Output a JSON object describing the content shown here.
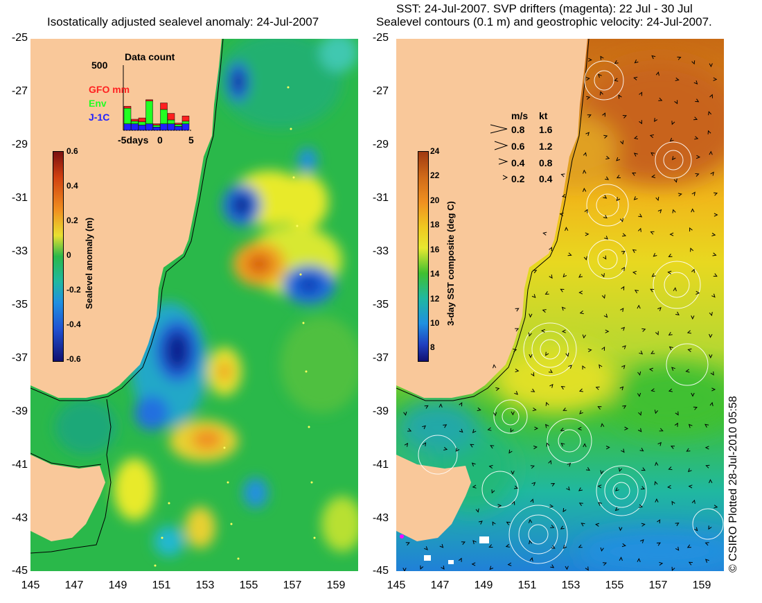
{
  "left_panel": {
    "title": "Isostatically adjusted sealevel anomaly: 24-Jul-2007",
    "y_ticks": [
      "-25",
      "-27",
      "-29",
      "-31",
      "-33",
      "-35",
      "-37",
      "-39",
      "-41",
      "-43",
      "-45"
    ],
    "x_ticks": [
      "145",
      "147",
      "149",
      "151",
      "153",
      "155",
      "157",
      "159"
    ],
    "colorbar": {
      "label": "Sealevel anomaly (m)",
      "ticks": [
        "0.6",
        "0.4",
        "0.2",
        "0",
        "-0.2",
        "-0.4",
        "-0.6"
      ],
      "range": [
        -0.6,
        0.6
      ]
    },
    "data_count_inset": {
      "title": "Data count",
      "y_max_label": "500",
      "x_labels": [
        "-5days",
        "0",
        "5"
      ],
      "legend": [
        {
          "label": "GFO mm",
          "color": "#ff2020"
        },
        {
          "label": "Env",
          "color": "#22ff22"
        },
        {
          "label": "J-1C",
          "color": "#2020ff"
        }
      ],
      "bars": [
        {
          "j1c": 0.1,
          "env": 0.24,
          "gfo": 0.03
        },
        {
          "j1c": 0.1,
          "env": 0.04,
          "gfo": 0.03
        },
        {
          "j1c": 0.08,
          "env": 0.05,
          "gfo": 0.06
        },
        {
          "j1c": 0.1,
          "env": 0.35,
          "gfo": 0.02
        },
        {
          "j1c": 0.05,
          "env": 0.03,
          "gfo": 0.02
        },
        {
          "j1c": 0.1,
          "env": 0.22,
          "gfo": 0.1
        },
        {
          "j1c": 0.1,
          "env": 0.06,
          "gfo": 0.1
        },
        {
          "j1c": 0.06,
          "env": 0.03,
          "gfo": 0.02
        },
        {
          "j1c": 0.1,
          "env": 0.04,
          "gfo": 0.08
        }
      ]
    }
  },
  "right_panel": {
    "title_line1": "SST: 24-Jul-2007. SVP drifters (magenta): 22 Jul - 30 Jul",
    "title_line2": "Sealevel contours (0.1 m) and geostrophic velocity: 24-Jul-2007.",
    "y_ticks": [
      "-25",
      "-27",
      "-29",
      "-31",
      "-33",
      "-35",
      "-37",
      "-39",
      "-41",
      "-43",
      "-45"
    ],
    "x_ticks": [
      "145",
      "147",
      "149",
      "151",
      "153",
      "155",
      "157",
      "159"
    ],
    "colorbar": {
      "label": "3-day SST composite (deg C)",
      "ticks": [
        "24",
        "22",
        "20",
        "18",
        "16",
        "14",
        "12",
        "10",
        "8"
      ],
      "range": [
        7,
        24
      ]
    },
    "velocity_key": {
      "header_ms": "m/s",
      "header_kt": "kt",
      "rows": [
        {
          "ms": "0.8",
          "kt": "1.6"
        },
        {
          "ms": "0.6",
          "kt": "1.2"
        },
        {
          "ms": "0.4",
          "kt": "0.8"
        },
        {
          "ms": "0.2",
          "kt": "0.4"
        }
      ]
    }
  },
  "credit": "© CSIRO Plotted 28-Jul-2010 05:58",
  "colors": {
    "land": "#f9c89a",
    "sla_mid": "#2ab84a",
    "sst_warm": "#d47a1a",
    "sst_cool": "#22b832"
  }
}
